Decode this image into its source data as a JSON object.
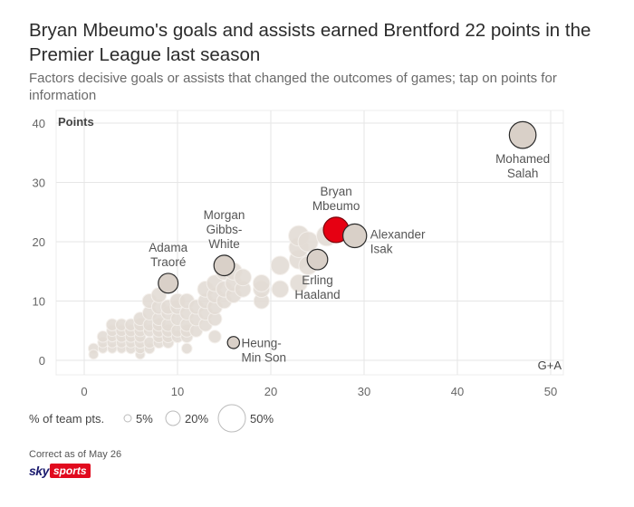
{
  "title": "Bryan Mbeumo's goals and assists earned Brentford 22 points in the Premier League last season",
  "subtitle": "Factors decisive goals or assists that changed the outcomes of games; tap on points for information",
  "footer": {
    "note": "Correct as of May 26",
    "logo_sky": "sky",
    "logo_sports": "sports"
  },
  "colors": {
    "highlight": "#e60012",
    "labeled": "#d9d0c8",
    "background_dots": "#e3dcd5",
    "axis_text": "#666666",
    "grid": "#e6e6e6"
  },
  "chart_data": {
    "type": "scatter",
    "title": "Bryan Mbeumo's goals and assists earned Brentford 22 points in the Premier League last season",
    "xlabel": "G+A",
    "ylabel": "Points",
    "xlim": [
      -3,
      52
    ],
    "ylim": [
      -2,
      42
    ],
    "xticks": [
      0,
      10,
      20,
      30,
      40,
      50
    ],
    "yticks": [
      0,
      10,
      20,
      30,
      40
    ],
    "grid": true,
    "size_variable": "% of team pts.",
    "size_legend": [
      {
        "label": "5%",
        "value": 5
      },
      {
        "label": "20%",
        "value": 20
      },
      {
        "label": "50%",
        "value": 50
      }
    ],
    "labeled_points": [
      {
        "name": "Mohamed Salah",
        "label_lines": [
          "Mohamed",
          "Salah"
        ],
        "x": 47,
        "y": 38,
        "size": 45,
        "label_pos": "below",
        "highlight": false
      },
      {
        "name": "Bryan Mbeumo",
        "label_lines": [
          "Bryan",
          "Mbeumo"
        ],
        "x": 27,
        "y": 22,
        "size": 40,
        "label_pos": "above",
        "highlight": true
      },
      {
        "name": "Alexander Isak",
        "label_lines": [
          "Alexander",
          "Isak"
        ],
        "x": 29,
        "y": 21,
        "size": 34,
        "label_pos": "right",
        "highlight": false
      },
      {
        "name": "Erling Haaland",
        "label_lines": [
          "Erling",
          "Haaland"
        ],
        "x": 25,
        "y": 17,
        "size": 24,
        "label_pos": "below",
        "highlight": false
      },
      {
        "name": "Morgan Gibbs-White",
        "label_lines": [
          "Morgan",
          "Gibbs-",
          "White"
        ],
        "x": 15,
        "y": 16,
        "size": 24,
        "label_pos": "above",
        "highlight": false
      },
      {
        "name": "Adama Traoré",
        "label_lines": [
          "Adama",
          "Traoré"
        ],
        "x": 9,
        "y": 13,
        "size": 22,
        "label_pos": "above",
        "highlight": false
      },
      {
        "name": "Heung-Min Son",
        "label_lines": [
          "Heung-",
          "Min Son"
        ],
        "x": 16,
        "y": 3,
        "size": 6,
        "label_pos": "right-below",
        "highlight": false
      }
    ],
    "other_points": [
      {
        "x": 1,
        "y": 2,
        "size": 4
      },
      {
        "x": 1,
        "y": 1,
        "size": 3
      },
      {
        "x": 2,
        "y": 2,
        "size": 3
      },
      {
        "x": 2,
        "y": 3,
        "size": 4
      },
      {
        "x": 2,
        "y": 4,
        "size": 5
      },
      {
        "x": 3,
        "y": 2,
        "size": 3
      },
      {
        "x": 3,
        "y": 3,
        "size": 4
      },
      {
        "x": 3,
        "y": 4,
        "size": 4
      },
      {
        "x": 3,
        "y": 5,
        "size": 5
      },
      {
        "x": 3,
        "y": 6,
        "size": 6
      },
      {
        "x": 4,
        "y": 2,
        "size": 3
      },
      {
        "x": 4,
        "y": 3,
        "size": 4
      },
      {
        "x": 4,
        "y": 4,
        "size": 5
      },
      {
        "x": 4,
        "y": 5,
        "size": 5
      },
      {
        "x": 4,
        "y": 6,
        "size": 6
      },
      {
        "x": 5,
        "y": 2,
        "size": 4
      },
      {
        "x": 5,
        "y": 3,
        "size": 4
      },
      {
        "x": 5,
        "y": 4,
        "size": 5
      },
      {
        "x": 5,
        "y": 5,
        "size": 6
      },
      {
        "x": 5,
        "y": 6,
        "size": 6
      },
      {
        "x": 6,
        "y": 1,
        "size": 3
      },
      {
        "x": 6,
        "y": 2,
        "size": 4
      },
      {
        "x": 6,
        "y": 3,
        "size": 5
      },
      {
        "x": 6,
        "y": 4,
        "size": 5
      },
      {
        "x": 6,
        "y": 5,
        "size": 6
      },
      {
        "x": 6,
        "y": 6,
        "size": 7
      },
      {
        "x": 6,
        "y": 7,
        "size": 8
      },
      {
        "x": 7,
        "y": 2,
        "size": 4
      },
      {
        "x": 7,
        "y": 3,
        "size": 5
      },
      {
        "x": 7,
        "y": 5,
        "size": 6
      },
      {
        "x": 7,
        "y": 6,
        "size": 7
      },
      {
        "x": 7,
        "y": 8,
        "size": 9
      },
      {
        "x": 7,
        "y": 10,
        "size": 10
      },
      {
        "x": 8,
        "y": 3,
        "size": 5
      },
      {
        "x": 8,
        "y": 4,
        "size": 6
      },
      {
        "x": 8,
        "y": 5,
        "size": 7
      },
      {
        "x": 8,
        "y": 6,
        "size": 7
      },
      {
        "x": 8,
        "y": 7,
        "size": 8
      },
      {
        "x": 8,
        "y": 9,
        "size": 10
      },
      {
        "x": 8,
        "y": 11,
        "size": 11
      },
      {
        "x": 9,
        "y": 3,
        "size": 5
      },
      {
        "x": 9,
        "y": 4,
        "size": 6
      },
      {
        "x": 9,
        "y": 5,
        "size": 7
      },
      {
        "x": 9,
        "y": 6,
        "size": 8
      },
      {
        "x": 9,
        "y": 8,
        "size": 9
      },
      {
        "x": 9,
        "y": 9,
        "size": 10
      },
      {
        "x": 10,
        "y": 4,
        "size": 6
      },
      {
        "x": 10,
        "y": 5,
        "size": 7
      },
      {
        "x": 10,
        "y": 7,
        "size": 8
      },
      {
        "x": 10,
        "y": 9,
        "size": 10
      },
      {
        "x": 10,
        "y": 10,
        "size": 11
      },
      {
        "x": 11,
        "y": 2,
        "size": 4
      },
      {
        "x": 11,
        "y": 4,
        "size": 6
      },
      {
        "x": 11,
        "y": 5,
        "size": 7
      },
      {
        "x": 11,
        "y": 6,
        "size": 8
      },
      {
        "x": 11,
        "y": 8,
        "size": 9
      },
      {
        "x": 11,
        "y": 10,
        "size": 11
      },
      {
        "x": 12,
        "y": 5,
        "size": 7
      },
      {
        "x": 12,
        "y": 7,
        "size": 9
      },
      {
        "x": 12,
        "y": 9,
        "size": 10
      },
      {
        "x": 13,
        "y": 6,
        "size": 8
      },
      {
        "x": 13,
        "y": 8,
        "size": 10
      },
      {
        "x": 13,
        "y": 10,
        "size": 11
      },
      {
        "x": 13,
        "y": 12,
        "size": 13
      },
      {
        "x": 14,
        "y": 4,
        "size": 7
      },
      {
        "x": 14,
        "y": 7,
        "size": 9
      },
      {
        "x": 14,
        "y": 9,
        "size": 11
      },
      {
        "x": 14,
        "y": 11,
        "size": 12
      },
      {
        "x": 14,
        "y": 13,
        "size": 14
      },
      {
        "x": 15,
        "y": 10,
        "size": 11
      },
      {
        "x": 15,
        "y": 12,
        "size": 13
      },
      {
        "x": 15,
        "y": 15,
        "size": 16
      },
      {
        "x": 16,
        "y": 11,
        "size": 12
      },
      {
        "x": 16,
        "y": 13,
        "size": 14
      },
      {
        "x": 16,
        "y": 15,
        "size": 16
      },
      {
        "x": 17,
        "y": 12,
        "size": 13
      },
      {
        "x": 17,
        "y": 14,
        "size": 15
      },
      {
        "x": 19,
        "y": 10,
        "size": 12
      },
      {
        "x": 19,
        "y": 12,
        "size": 14
      },
      {
        "x": 19,
        "y": 13,
        "size": 15
      },
      {
        "x": 21,
        "y": 12,
        "size": 15
      },
      {
        "x": 21,
        "y": 16,
        "size": 19
      },
      {
        "x": 23,
        "y": 13,
        "size": 16
      },
      {
        "x": 23,
        "y": 17,
        "size": 20
      },
      {
        "x": 23,
        "y": 19,
        "size": 22
      },
      {
        "x": 23,
        "y": 21,
        "size": 24
      },
      {
        "x": 24,
        "y": 20,
        "size": 23
      },
      {
        "x": 24,
        "y": 16,
        "size": 19
      },
      {
        "x": 26,
        "y": 21,
        "size": 24
      }
    ]
  }
}
